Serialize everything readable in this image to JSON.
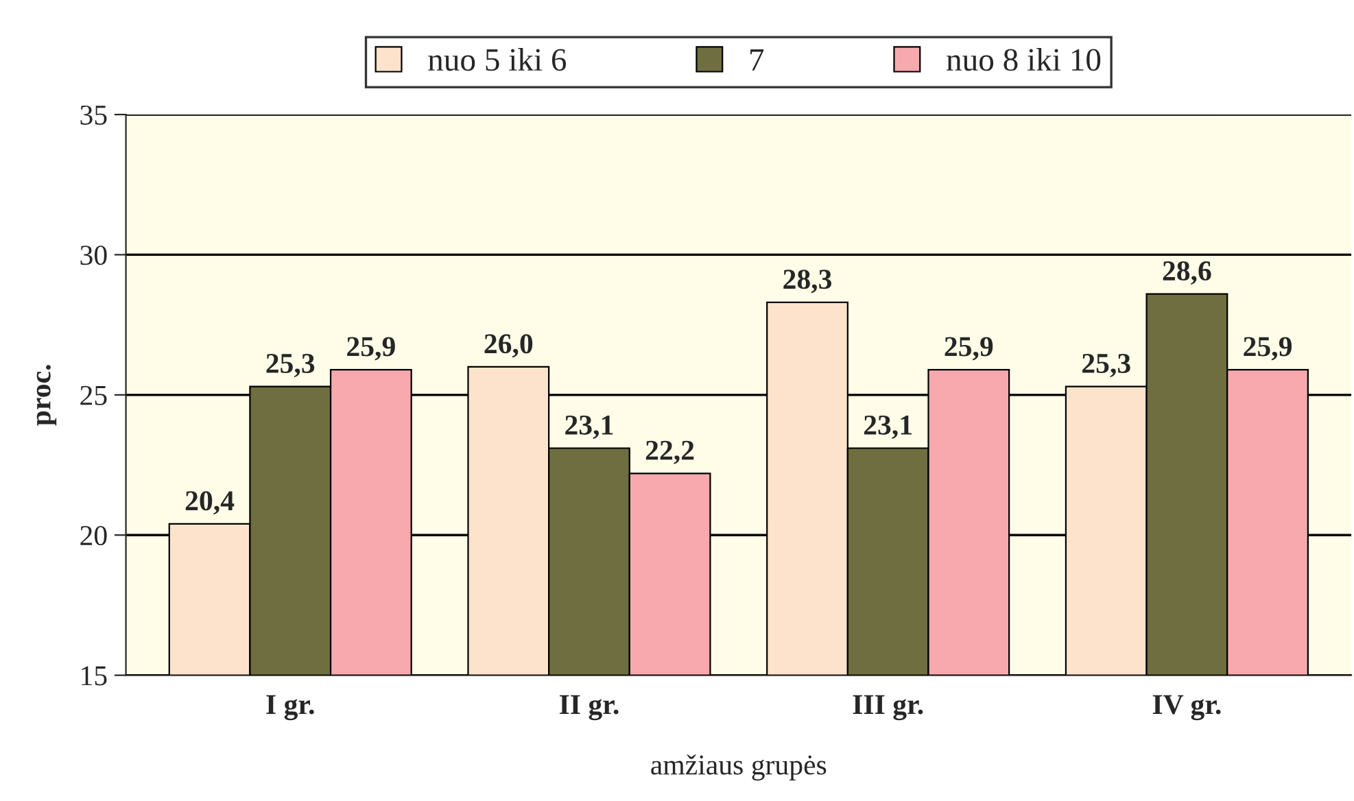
{
  "chart_data": {
    "type": "bar",
    "xlabel": "amžiaus grupės",
    "ylabel": "proc.",
    "categories": [
      "I gr.",
      "II gr.",
      "III gr.",
      "IV gr."
    ],
    "series": [
      {
        "name": "nuo 5 iki 6",
        "color": "#fde3cc",
        "values": [
          20.4,
          26.0,
          28.3,
          25.3
        ],
        "value_labels": [
          "20,4",
          "26,0",
          "28,3",
          "25,3"
        ]
      },
      {
        "name": "7",
        "color": "#6e6e40",
        "values": [
          25.3,
          23.1,
          23.1,
          28.6
        ],
        "value_labels": [
          "25,3",
          "23,1",
          "23,1",
          "28,6"
        ]
      },
      {
        "name": "nuo 8 iki 10",
        "color": "#f7a9ae",
        "values": [
          25.9,
          22.2,
          25.9,
          25.9
        ],
        "value_labels": [
          "25,9",
          "22,2",
          "25,9",
          "25,9"
        ]
      }
    ],
    "ylim": [
      15,
      35
    ],
    "yticks": [
      15,
      20,
      25,
      30,
      35
    ],
    "grid": "y",
    "legend": "top"
  }
}
